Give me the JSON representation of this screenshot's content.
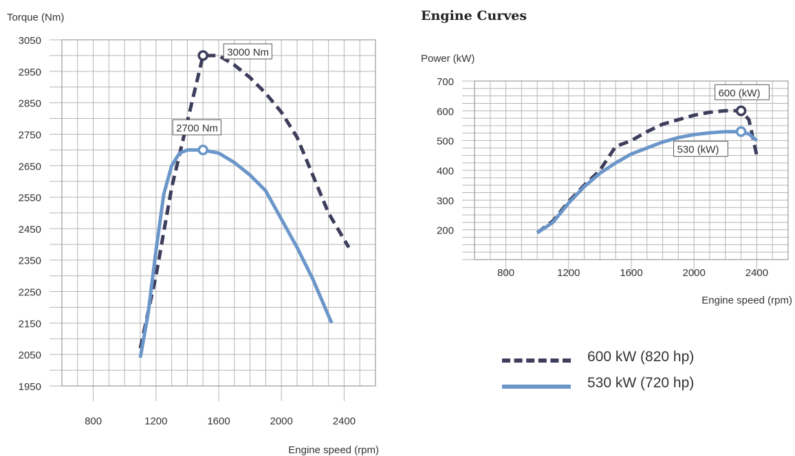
{
  "page_title": "Engine Curves",
  "colors": {
    "series_600": "#3d3d5c",
    "series_530": "#6b96c9",
    "grid": "#b5b5b5"
  },
  "legend": [
    {
      "label": "600 kW (820 hp)",
      "style": "dashed"
    },
    {
      "label": "530 kW (720 hp)",
      "style": "solid"
    }
  ],
  "chart_data": [
    {
      "type": "line",
      "title": "",
      "ylabel": "Torque (Nm)",
      "xlabel": "Engine speed (rpm)",
      "xlim": [
        600,
        2600
      ],
      "ylim": [
        1950,
        3050
      ],
      "xticks": [
        800,
        1200,
        1600,
        2000,
        2400
      ],
      "yticks": [
        1950,
        2050,
        2150,
        2250,
        2350,
        2450,
        2550,
        2650,
        2750,
        2850,
        2950,
        3050
      ],
      "grid": true,
      "series": [
        {
          "name": "600 kW (820 hp)",
          "style": "dashed",
          "x": [
            1100,
            1200,
            1300,
            1400,
            1500,
            1600,
            1700,
            1800,
            1900,
            2000,
            2100,
            2200,
            2300,
            2430
          ],
          "y": [
            2070,
            2300,
            2580,
            2790,
            3000,
            3000,
            2970,
            2930,
            2880,
            2820,
            2740,
            2620,
            2500,
            2390
          ]
        },
        {
          "name": "530 kW (720 hp)",
          "style": "solid",
          "x": [
            1100,
            1150,
            1200,
            1250,
            1300,
            1350,
            1400,
            1500,
            1600,
            1700,
            1800,
            1900,
            2000,
            2100,
            2200,
            2320
          ],
          "y": [
            2040,
            2180,
            2380,
            2560,
            2650,
            2690,
            2700,
            2700,
            2690,
            2660,
            2620,
            2570,
            2480,
            2390,
            2290,
            2150
          ]
        }
      ],
      "annotations": [
        {
          "text": "3000 Nm",
          "x": 1500,
          "y": 3000,
          "series": 0
        },
        {
          "text": "2700 Nm",
          "x": 1500,
          "y": 2700,
          "series": 1
        }
      ]
    },
    {
      "type": "line",
      "title": "",
      "ylabel": "Power (kW)",
      "xlabel": "Engine speed (rpm)",
      "xlim": [
        600,
        2600
      ],
      "ylim": [
        100,
        700
      ],
      "xticks": [
        800,
        1200,
        1600,
        2000,
        2400
      ],
      "yticks": [
        200,
        300,
        400,
        500,
        600,
        700
      ],
      "grid": true,
      "series": [
        {
          "name": "600 kW (820 hp)",
          "style": "dashed",
          "x": [
            1000,
            1100,
            1200,
            1300,
            1400,
            1500,
            1600,
            1700,
            1800,
            1900,
            2000,
            2100,
            2200,
            2300,
            2350,
            2400
          ],
          "y": [
            190,
            230,
            295,
            350,
            400,
            480,
            500,
            530,
            555,
            570,
            585,
            595,
            600,
            600,
            570,
            450
          ]
        },
        {
          "name": "530 kW (720 hp)",
          "style": "solid",
          "x": [
            1000,
            1100,
            1200,
            1300,
            1400,
            1500,
            1600,
            1700,
            1800,
            1900,
            2000,
            2100,
            2200,
            2300,
            2350,
            2400
          ],
          "y": [
            190,
            225,
            290,
            345,
            390,
            425,
            455,
            475,
            495,
            510,
            520,
            526,
            530,
            530,
            522,
            500
          ]
        }
      ],
      "annotations": [
        {
          "text": "600 (kW)",
          "x": 2300,
          "y": 600,
          "series": 0
        },
        {
          "text": "530 (kW)",
          "x": 2300,
          "y": 530,
          "series": 1
        }
      ]
    }
  ]
}
